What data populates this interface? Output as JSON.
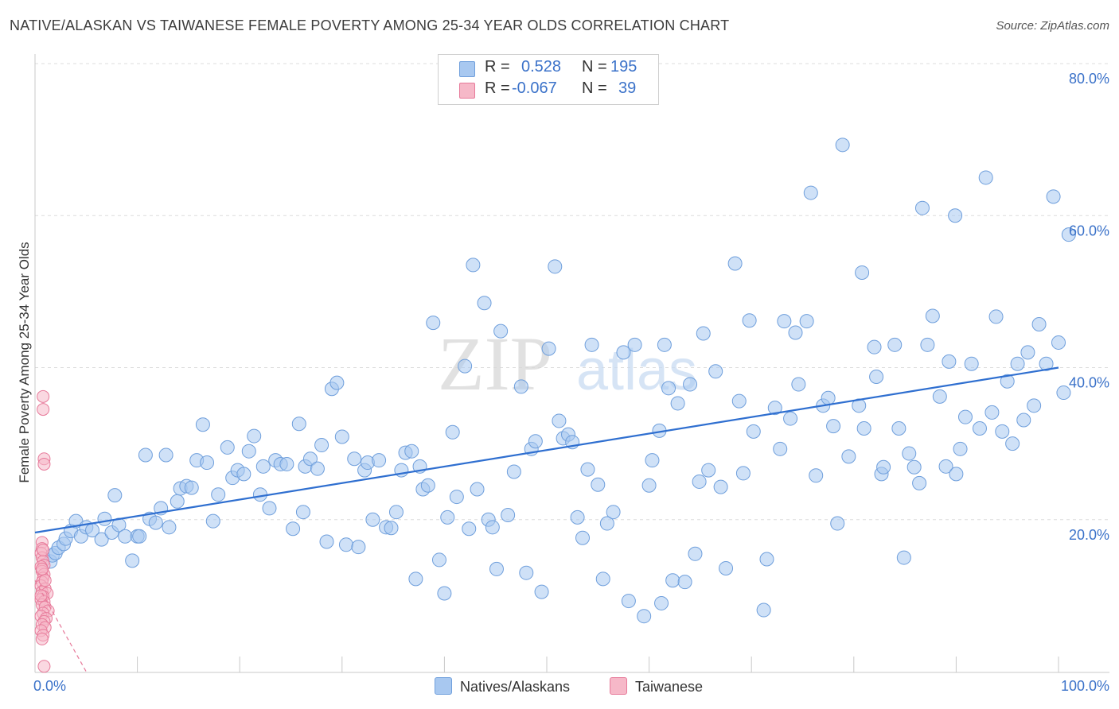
{
  "header": {
    "title": "NATIVE/ALASKAN VS TAIWANESE FEMALE POVERTY AMONG 25-34 YEAR OLDS CORRELATION CHART",
    "source": "Source: ZipAtlas.com"
  },
  "watermark": {
    "zip": "ZIP",
    "atlas": "atlas"
  },
  "stats": {
    "rows": [
      {
        "series": "Natives/Alaskans",
        "r_label": "R =",
        "r": "0.528",
        "n_label": "N =",
        "n": "195",
        "color": "#a8c8f0"
      },
      {
        "series": "Taiwanese",
        "r_label": "R =",
        "r": "-0.067",
        "n_label": "N =",
        "n": "39",
        "color": "#f6b8c8"
      }
    ]
  },
  "legend": {
    "items": [
      {
        "label": "Natives/Alaskans",
        "color": "#a8c8f0"
      },
      {
        "label": "Taiwanese",
        "color": "#f6b8c8"
      }
    ]
  },
  "colors": {
    "blue_fill": "#a8c8f0",
    "blue_stroke": "#6f9fdc",
    "blue_line": "#2f6fd0",
    "pink_fill": "#f6b8c8",
    "pink_stroke": "#e77a9a",
    "axis_text": "#3b72c9",
    "grid": "#dcdcdc"
  },
  "chart_data": {
    "type": "scatter",
    "title": "NATIVE/ALASKAN VS TAIWANESE FEMALE POVERTY AMONG 25-34 YEAR OLDS CORRELATION CHART",
    "xlabel": "",
    "ylabel": "Female Poverty Among 25-34 Year Olds",
    "xlim": [
      0,
      100
    ],
    "ylim": [
      0,
      80
    ],
    "x_tick_labels": [
      "0.0%",
      "100.0%"
    ],
    "y_ticks": [
      20,
      40,
      60,
      80
    ],
    "y_tick_labels": [
      "20.0%",
      "40.0%",
      "60.0%",
      "80.0%"
    ],
    "grid": "horizontal dashed",
    "legend_position": "bottom-center",
    "series": [
      {
        "name": "Natives/Alaskans",
        "trend": {
          "x": [
            0,
            100
          ],
          "y": [
            18.3,
            40.0
          ]
        },
        "points": [
          [
            1.5,
            14.5
          ],
          [
            1.7,
            15.3
          ],
          [
            2.0,
            15.6
          ],
          [
            2.3,
            16.3
          ],
          [
            2.8,
            16.8
          ],
          [
            3.0,
            17.5
          ],
          [
            3.5,
            18.5
          ],
          [
            4.0,
            19.8
          ],
          [
            4.5,
            17.8
          ],
          [
            5.0,
            19.0
          ],
          [
            5.6,
            18.6
          ],
          [
            6.5,
            17.4
          ],
          [
            6.8,
            20.1
          ],
          [
            7.5,
            18.3
          ],
          [
            7.8,
            23.2
          ],
          [
            8.2,
            19.3
          ],
          [
            8.8,
            17.8
          ],
          [
            9.5,
            14.6
          ],
          [
            10.0,
            17.8
          ],
          [
            10.2,
            17.8
          ],
          [
            10.8,
            28.5
          ],
          [
            11.2,
            20.1
          ],
          [
            11.8,
            19.6
          ],
          [
            12.3,
            21.5
          ],
          [
            12.8,
            28.5
          ],
          [
            13.1,
            19.0
          ],
          [
            13.9,
            22.4
          ],
          [
            14.2,
            24.1
          ],
          [
            14.8,
            24.4
          ],
          [
            15.3,
            24.2
          ],
          [
            15.8,
            27.8
          ],
          [
            16.4,
            32.5
          ],
          [
            16.8,
            27.5
          ],
          [
            17.4,
            19.8
          ],
          [
            17.9,
            23.3
          ],
          [
            18.8,
            29.5
          ],
          [
            19.3,
            25.5
          ],
          [
            19.8,
            26.5
          ],
          [
            20.4,
            26.0
          ],
          [
            20.9,
            29.0
          ],
          [
            21.4,
            31.0
          ],
          [
            22.0,
            23.3
          ],
          [
            22.3,
            27.0
          ],
          [
            22.9,
            21.5
          ],
          [
            23.5,
            27.8
          ],
          [
            24.0,
            27.3
          ],
          [
            24.6,
            27.3
          ],
          [
            25.2,
            18.8
          ],
          [
            25.8,
            32.6
          ],
          [
            26.2,
            21.0
          ],
          [
            26.4,
            27.0
          ],
          [
            26.9,
            28.0
          ],
          [
            27.6,
            26.7
          ],
          [
            28.0,
            29.8
          ],
          [
            28.5,
            17.1
          ],
          [
            29.0,
            37.2
          ],
          [
            29.5,
            38.0
          ],
          [
            30.0,
            30.9
          ],
          [
            30.4,
            16.7
          ],
          [
            31.2,
            28.0
          ],
          [
            31.6,
            16.4
          ],
          [
            32.2,
            26.5
          ],
          [
            32.5,
            27.5
          ],
          [
            33.0,
            20.0
          ],
          [
            33.6,
            27.8
          ],
          [
            34.3,
            19.0
          ],
          [
            34.8,
            18.9
          ],
          [
            35.3,
            21.0
          ],
          [
            35.8,
            26.5
          ],
          [
            36.2,
            28.8
          ],
          [
            36.8,
            29.0
          ],
          [
            37.2,
            12.2
          ],
          [
            37.6,
            27.0
          ],
          [
            37.9,
            24.0
          ],
          [
            38.4,
            24.5
          ],
          [
            38.9,
            45.9
          ],
          [
            39.5,
            14.7
          ],
          [
            40.0,
            10.3
          ],
          [
            40.3,
            20.3
          ],
          [
            40.8,
            31.5
          ],
          [
            41.2,
            23.0
          ],
          [
            42.0,
            40.2
          ],
          [
            42.4,
            18.8
          ],
          [
            42.8,
            53.5
          ],
          [
            43.2,
            24.0
          ],
          [
            43.9,
            48.5
          ],
          [
            44.3,
            20.0
          ],
          [
            44.7,
            19.0
          ],
          [
            45.1,
            13.5
          ],
          [
            45.5,
            44.8
          ],
          [
            46.2,
            20.6
          ],
          [
            46.8,
            26.3
          ],
          [
            47.5,
            37.5
          ],
          [
            48.0,
            13.0
          ],
          [
            48.5,
            29.3
          ],
          [
            48.9,
            30.3
          ],
          [
            49.5,
            10.5
          ],
          [
            50.2,
            42.5
          ],
          [
            50.8,
            53.3
          ],
          [
            51.2,
            33.0
          ],
          [
            51.6,
            30.7
          ],
          [
            52.1,
            31.2
          ],
          [
            52.5,
            30.2
          ],
          [
            53.0,
            20.3
          ],
          [
            53.5,
            17.6
          ],
          [
            54.0,
            26.6
          ],
          [
            54.4,
            43.0
          ],
          [
            55.0,
            24.6
          ],
          [
            55.5,
            12.2
          ],
          [
            55.9,
            19.5
          ],
          [
            56.5,
            21.0
          ],
          [
            57.5,
            42.0
          ],
          [
            58.0,
            9.3
          ],
          [
            58.6,
            43.0
          ],
          [
            59.5,
            7.3
          ],
          [
            60.0,
            24.5
          ],
          [
            60.3,
            27.8
          ],
          [
            61.0,
            31.7
          ],
          [
            61.5,
            43.0
          ],
          [
            61.9,
            37.3
          ],
          [
            62.3,
            12.0
          ],
          [
            62.8,
            35.3
          ],
          [
            63.5,
            11.8
          ],
          [
            64.0,
            37.8
          ],
          [
            64.5,
            15.5
          ],
          [
            64.9,
            25.0
          ],
          [
            65.3,
            44.5
          ],
          [
            65.8,
            26.5
          ],
          [
            66.5,
            39.5
          ],
          [
            67.0,
            24.3
          ],
          [
            67.5,
            13.6
          ],
          [
            68.4,
            53.7
          ],
          [
            68.8,
            35.6
          ],
          [
            69.2,
            26.1
          ],
          [
            69.8,
            46.2
          ],
          [
            70.2,
            31.6
          ],
          [
            71.2,
            8.1
          ],
          [
            71.5,
            14.8
          ],
          [
            72.3,
            34.7
          ],
          [
            72.8,
            29.3
          ],
          [
            73.2,
            46.1
          ],
          [
            73.8,
            33.3
          ],
          [
            74.3,
            44.6
          ],
          [
            74.6,
            37.8
          ],
          [
            75.4,
            46.1
          ],
          [
            75.8,
            63.0
          ],
          [
            76.3,
            25.8
          ],
          [
            77.0,
            35.0
          ],
          [
            77.5,
            36.0
          ],
          [
            78.0,
            32.3
          ],
          [
            78.4,
            19.5
          ],
          [
            78.9,
            69.3
          ],
          [
            79.5,
            28.3
          ],
          [
            80.5,
            35.0
          ],
          [
            80.8,
            52.5
          ],
          [
            81.0,
            32.0
          ],
          [
            82.0,
            42.7
          ],
          [
            82.2,
            38.8
          ],
          [
            82.7,
            26.0
          ],
          [
            82.9,
            26.9
          ],
          [
            84.0,
            43.0
          ],
          [
            84.4,
            32.0
          ],
          [
            84.9,
            15.0
          ],
          [
            85.4,
            28.7
          ],
          [
            85.9,
            26.9
          ],
          [
            86.4,
            24.8
          ],
          [
            86.7,
            61.0
          ],
          [
            87.2,
            43.0
          ],
          [
            87.7,
            46.8
          ],
          [
            88.4,
            36.2
          ],
          [
            89.0,
            27.0
          ],
          [
            89.3,
            40.8
          ],
          [
            89.9,
            60.0
          ],
          [
            90.4,
            29.3
          ],
          [
            90.9,
            33.5
          ],
          [
            91.5,
            40.5
          ],
          [
            92.3,
            32.0
          ],
          [
            92.9,
            65.0
          ],
          [
            93.5,
            34.1
          ],
          [
            93.9,
            46.7
          ],
          [
            94.5,
            31.6
          ],
          [
            95.0,
            38.2
          ],
          [
            95.5,
            30.0
          ],
          [
            96.0,
            40.5
          ],
          [
            96.6,
            33.1
          ],
          [
            97.0,
            42.0
          ],
          [
            97.6,
            35.0
          ],
          [
            98.1,
            45.7
          ],
          [
            98.8,
            40.5
          ],
          [
            99.5,
            62.5
          ],
          [
            100.0,
            43.3
          ],
          [
            100.5,
            36.7
          ],
          [
            101.0,
            57.5
          ],
          [
            61.2,
            9.0
          ],
          [
            90.0,
            26.0
          ]
        ]
      },
      {
        "name": "Taiwanese",
        "trend": {
          "x": [
            0,
            5
          ],
          "y": [
            12.0,
            0.0
          ]
        },
        "points": [
          [
            0.4,
            36.2
          ],
          [
            0.4,
            34.5
          ],
          [
            0.5,
            28.0
          ],
          [
            0.5,
            27.3
          ],
          [
            0.3,
            17.0
          ],
          [
            0.3,
            16.2
          ],
          [
            0.2,
            15.6
          ],
          [
            0.3,
            15.0
          ],
          [
            0.4,
            14.5
          ],
          [
            0.5,
            14.0
          ],
          [
            0.2,
            13.8
          ],
          [
            0.3,
            13.2
          ],
          [
            0.5,
            12.8
          ],
          [
            0.4,
            12.3
          ],
          [
            0.3,
            11.8
          ],
          [
            0.2,
            11.3
          ],
          [
            0.6,
            10.9
          ],
          [
            0.3,
            10.5
          ],
          [
            0.8,
            10.3
          ],
          [
            0.4,
            9.9
          ],
          [
            0.2,
            9.5
          ],
          [
            0.5,
            9.2
          ],
          [
            0.3,
            8.8
          ],
          [
            0.6,
            8.5
          ],
          [
            0.9,
            8.0
          ],
          [
            0.4,
            7.7
          ],
          [
            0.2,
            7.3
          ],
          [
            0.7,
            7.0
          ],
          [
            0.5,
            6.6
          ],
          [
            0.3,
            6.2
          ],
          [
            0.6,
            5.8
          ],
          [
            0.2,
            5.4
          ],
          [
            0.4,
            4.8
          ],
          [
            0.3,
            4.3
          ],
          [
            0.5,
            0.7
          ],
          [
            0.3,
            13.5
          ],
          [
            0.6,
            12.0
          ],
          [
            0.2,
            10.0
          ],
          [
            0.4,
            16.0
          ]
        ]
      }
    ]
  }
}
